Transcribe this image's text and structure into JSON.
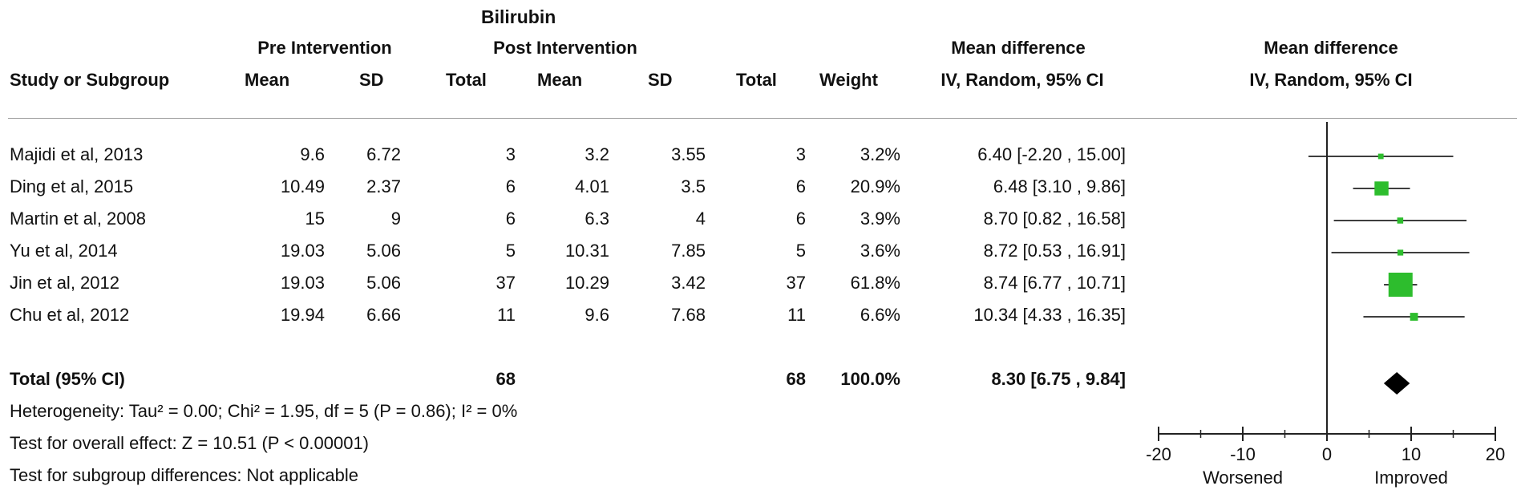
{
  "title": "Bilirubin",
  "headers": {
    "group1": "Pre Intervention",
    "group2": "Post Intervention",
    "md_table_top": "Mean difference",
    "md_table_bottom": "IV, Random, 95% CI",
    "md_plot_top": "Mean difference",
    "md_plot_bottom": "IV, Random, 95% CI",
    "study": "Study or Subgroup",
    "mean1": "Mean",
    "sd1": "SD",
    "total1": "Total",
    "mean2": "Mean",
    "sd2": "SD",
    "total2": "Total",
    "weight": "Weight"
  },
  "studies": [
    {
      "name": "Majidi et al,  2013",
      "mean1": "9.6",
      "sd1": "6.72",
      "total1": "3",
      "mean2": "3.2",
      "sd2": "3.55",
      "total2": "3",
      "weight": "3.2%",
      "ci": "6.40 [-2.20 , 15.00]"
    },
    {
      "name": "Ding et al,  2015",
      "mean1": "10.49",
      "sd1": "2.37",
      "total1": "6",
      "mean2": "4.01",
      "sd2": "3.5",
      "total2": "6",
      "weight": "20.9%",
      "ci": "6.48 [3.10 , 9.86]"
    },
    {
      "name": "Martin et al, 2008",
      "mean1": "15",
      "sd1": "9",
      "total1": "6",
      "mean2": "6.3",
      "sd2": "4",
      "total2": "6",
      "weight": "3.9%",
      "ci": "8.70 [0.82 , 16.58]"
    },
    {
      "name": "Yu et al,  2014",
      "mean1": "19.03",
      "sd1": "5.06",
      "total1": "5",
      "mean2": "10.31",
      "sd2": "7.85",
      "total2": "5",
      "weight": "3.6%",
      "ci": "8.72 [0.53 , 16.91]"
    },
    {
      "name": "Jin et al, 2012",
      "mean1": "19.03",
      "sd1": "5.06",
      "total1": "37",
      "mean2": "10.29",
      "sd2": "3.42",
      "total2": "37",
      "weight": "61.8%",
      "ci": "8.74 [6.77 , 10.71]"
    },
    {
      "name": "Chu et al, 2012",
      "mean1": "19.94",
      "sd1": "6.66",
      "total1": "11",
      "mean2": "9.6",
      "sd2": "7.68",
      "total2": "11",
      "weight": "6.6%",
      "ci": "10.34 [4.33 , 16.35]"
    }
  ],
  "total": {
    "name": "Total (95% CI)",
    "total1": "68",
    "total2": "68",
    "weight": "100.0%",
    "ci": "8.30 [6.75 , 9.84]"
  },
  "footnotes": {
    "heterogeneity": "Heterogeneity: Tau² = 0.00; Chi² = 1.95, df = 5 (P = 0.86); I² = 0%",
    "overall": "Test for overall effect: Z = 10.51 (P < 0.00001)",
    "subgroup": "Test for subgroup differences: Not applicable"
  },
  "colors": {
    "marker": "#2dbd2d",
    "diamond": "#000000",
    "line": "#222222"
  },
  "chart_data": {
    "type": "forest",
    "title": "Bilirubin",
    "xlim": [
      -20,
      20
    ],
    "xticks": [
      -20,
      -10,
      0,
      10,
      20
    ],
    "xlabel_left": "Worsened",
    "xlabel_right": "Improved",
    "studies": [
      {
        "name": "Majidi et al,  2013",
        "md": 6.4,
        "lower": -2.2,
        "upper": 15.0,
        "weight": 3.2
      },
      {
        "name": "Ding et al,  2015",
        "md": 6.48,
        "lower": 3.1,
        "upper": 9.86,
        "weight": 20.9
      },
      {
        "name": "Martin et al, 2008",
        "md": 8.7,
        "lower": 0.82,
        "upper": 16.58,
        "weight": 3.9
      },
      {
        "name": "Yu et al,  2014",
        "md": 8.72,
        "lower": 0.53,
        "upper": 16.91,
        "weight": 3.6
      },
      {
        "name": "Jin et al, 2012",
        "md": 8.74,
        "lower": 6.77,
        "upper": 10.71,
        "weight": 61.8
      },
      {
        "name": "Chu et al, 2012",
        "md": 10.34,
        "lower": 4.33,
        "upper": 16.35,
        "weight": 6.6
      }
    ],
    "pooled": {
      "md": 8.3,
      "lower": 6.75,
      "upper": 9.84
    }
  }
}
